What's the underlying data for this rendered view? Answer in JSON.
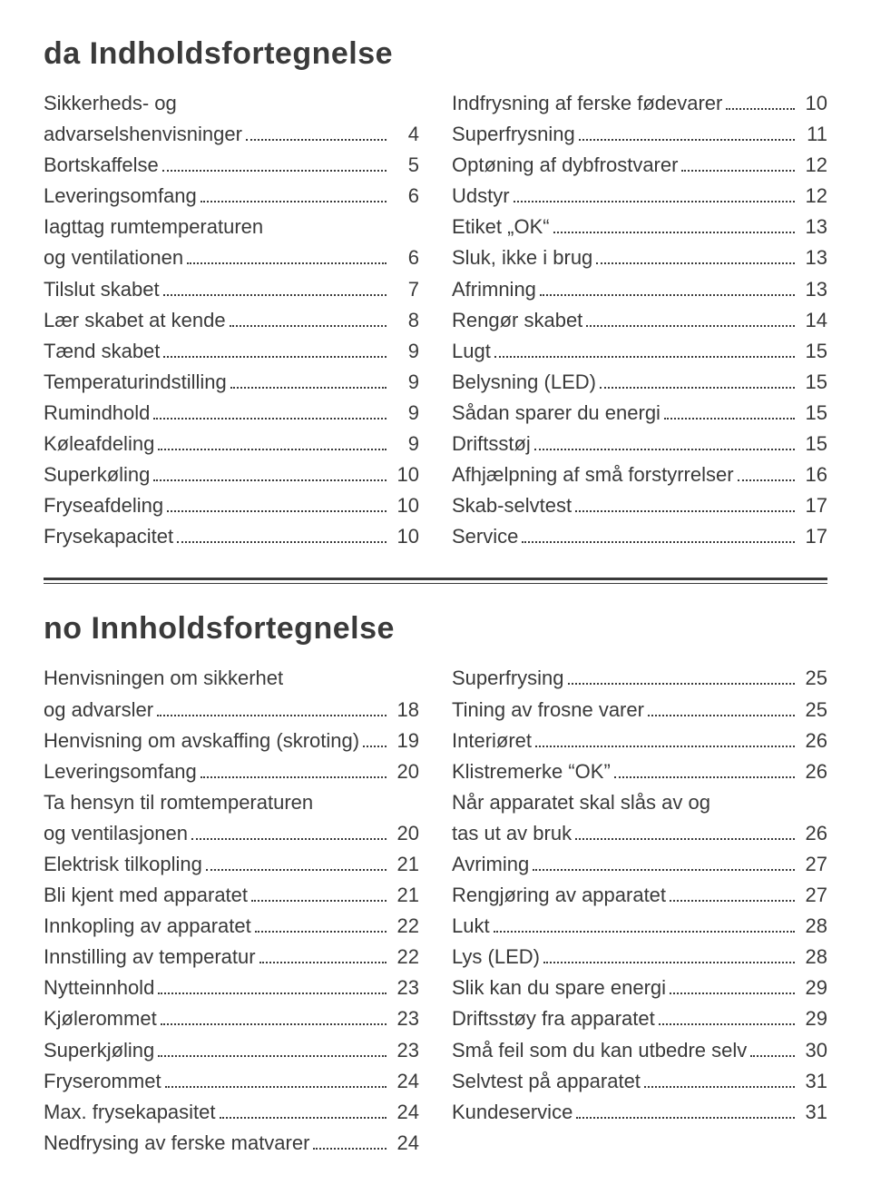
{
  "sections": [
    {
      "title": "da  Indholdsfortegnelse",
      "columns": [
        [
          {
            "label": "Sikkerheds- og",
            "cont": true
          },
          {
            "label": "advarselshenvisninger",
            "page": "4"
          },
          {
            "label": "Bortskaffelse",
            "page": "5"
          },
          {
            "label": "Leveringsomfang",
            "page": "6"
          },
          {
            "label": "Iagttag rumtemperaturen",
            "cont": true
          },
          {
            "label": "og ventilationen",
            "page": "6"
          },
          {
            "label": "Tilslut skabet",
            "page": "7"
          },
          {
            "label": "Lær skabet at kende",
            "page": "8"
          },
          {
            "label": "Tænd skabet",
            "page": "9"
          },
          {
            "label": "Temperaturindstilling",
            "page": "9"
          },
          {
            "label": "Rumindhold",
            "page": "9"
          },
          {
            "label": "Køleafdeling",
            "page": "9"
          },
          {
            "label": "Superkøling",
            "page": "10"
          },
          {
            "label": "Fryseafdeling",
            "page": "10"
          },
          {
            "label": "Frysekapacitet",
            "page": "10"
          }
        ],
        [
          {
            "label": "Indfrysning af ferske fødevarer",
            "page": "10"
          },
          {
            "label": "Superfrysning",
            "page": "11"
          },
          {
            "label": "Optøning af dybfrostvarer",
            "page": "12"
          },
          {
            "label": "Udstyr",
            "page": "12"
          },
          {
            "label": "Etiket „OK“",
            "page": "13"
          },
          {
            "label": "Sluk, ikke i brug",
            "page": "13"
          },
          {
            "label": "Afrimning",
            "page": "13"
          },
          {
            "label": "Rengør skabet",
            "page": "14"
          },
          {
            "label": "Lugt",
            "page": "15"
          },
          {
            "label": "Belysning (LED)",
            "page": "15"
          },
          {
            "label": "Sådan sparer du energi",
            "page": "15"
          },
          {
            "label": "Driftsstøj",
            "page": "15"
          },
          {
            "label": "Afhjælpning af små forstyrrelser",
            "page": "16"
          },
          {
            "label": "Skab-selvtest",
            "page": "17"
          },
          {
            "label": "Service",
            "page": "17"
          }
        ]
      ]
    },
    {
      "title": "no  Innholdsfortegnelse",
      "columns": [
        [
          {
            "label": "Henvisningen om sikkerhet",
            "cont": true
          },
          {
            "label": "og advarsler",
            "page": "18"
          },
          {
            "label": "Henvisning om avskaffing (skroting)",
            "page": "19"
          },
          {
            "label": "Leveringsomfang",
            "page": "20"
          },
          {
            "label": "Ta hensyn til romtemperaturen",
            "cont": true
          },
          {
            "label": "og ventilasjonen",
            "page": "20"
          },
          {
            "label": "Elektrisk tilkopling",
            "page": "21"
          },
          {
            "label": "Bli kjent med apparatet",
            "page": "21"
          },
          {
            "label": "Innkopling av apparatet",
            "page": "22"
          },
          {
            "label": "Innstilling av temperatur",
            "page": "22"
          },
          {
            "label": "Nytteinnhold",
            "page": "23"
          },
          {
            "label": "Kjølerommet",
            "page": "23"
          },
          {
            "label": "Superkjøling",
            "page": "23"
          },
          {
            "label": "Fryserommet",
            "page": "24"
          },
          {
            "label": "Max. frysekapasitet",
            "page": "24"
          },
          {
            "label": "Nedfrysing av ferske matvarer",
            "page": "24"
          }
        ],
        [
          {
            "label": "Superfrysing",
            "page": "25"
          },
          {
            "label": "Tining av frosne varer",
            "page": "25"
          },
          {
            "label": "Interiøret",
            "page": "26"
          },
          {
            "label": "Klistremerke “OK”",
            "page": "26"
          },
          {
            "label": "Når apparatet skal slås av og",
            "cont": true
          },
          {
            "label": "tas ut av bruk",
            "page": "26"
          },
          {
            "label": "Avriming",
            "page": "27"
          },
          {
            "label": "Rengjøring av apparatet",
            "page": "27"
          },
          {
            "label": "Lukt",
            "page": "28"
          },
          {
            "label": "Lys (LED)",
            "page": "28"
          },
          {
            "label": "Slik kan du spare energi",
            "page": "29"
          },
          {
            "label": "Driftsstøy fra apparatet",
            "page": "29"
          },
          {
            "label": "Små feil som du kan utbedre selv",
            "page": "30"
          },
          {
            "label": "Selvtest på apparatet",
            "page": "31"
          },
          {
            "label": "Kundeservice",
            "page": "31"
          }
        ]
      ]
    }
  ]
}
